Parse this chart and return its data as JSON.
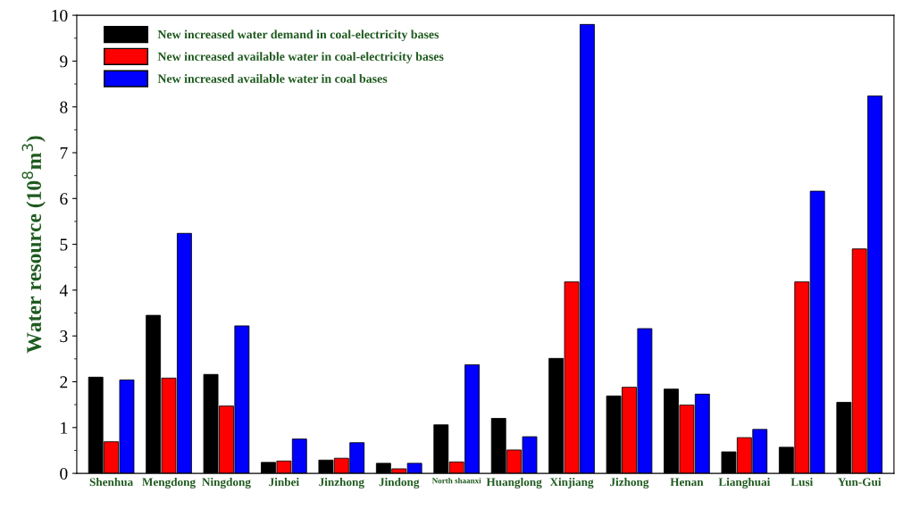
{
  "chart_data": {
    "type": "bar",
    "ylabel": "Water resource (10$^{8}$m$^{3}$)",
    "categories": [
      "Shenhua",
      "Mengdong",
      "Ningdong",
      "Jinbei",
      "Jinzhong",
      "Jindong",
      "North shaanxi",
      "Huanglong",
      "Xinjiang",
      "Jizhong",
      "Henan",
      "Lianghuai",
      "Lusi",
      "Yun-Gui"
    ],
    "series": [
      {
        "name": "New increased water demand in coal-electricity bases",
        "color": "#000000",
        "values": [
          2.1,
          3.45,
          2.16,
          0.24,
          0.29,
          0.22,
          1.06,
          1.2,
          2.51,
          1.69,
          1.84,
          0.47,
          0.57,
          1.55
        ]
      },
      {
        "name": "New increased available water in coal-electricity bases",
        "color": "#ff0000",
        "values": [
          0.69,
          2.08,
          1.47,
          0.27,
          0.33,
          0.1,
          0.25,
          0.51,
          4.18,
          1.88,
          1.49,
          0.78,
          4.18,
          4.9
        ]
      },
      {
        "name": "New increased available water in coal bases",
        "color": "#0000ff",
        "values": [
          2.04,
          5.24,
          3.22,
          0.75,
          0.67,
          0.22,
          2.37,
          0.8,
          9.8,
          3.16,
          1.73,
          0.96,
          6.16,
          8.24
        ]
      }
    ],
    "ylim": [
      0,
      10
    ],
    "yticks": [
      0,
      1,
      2,
      3,
      4,
      5,
      6,
      7,
      8,
      9,
      10
    ],
    "grid": false,
    "legend": "top left"
  }
}
